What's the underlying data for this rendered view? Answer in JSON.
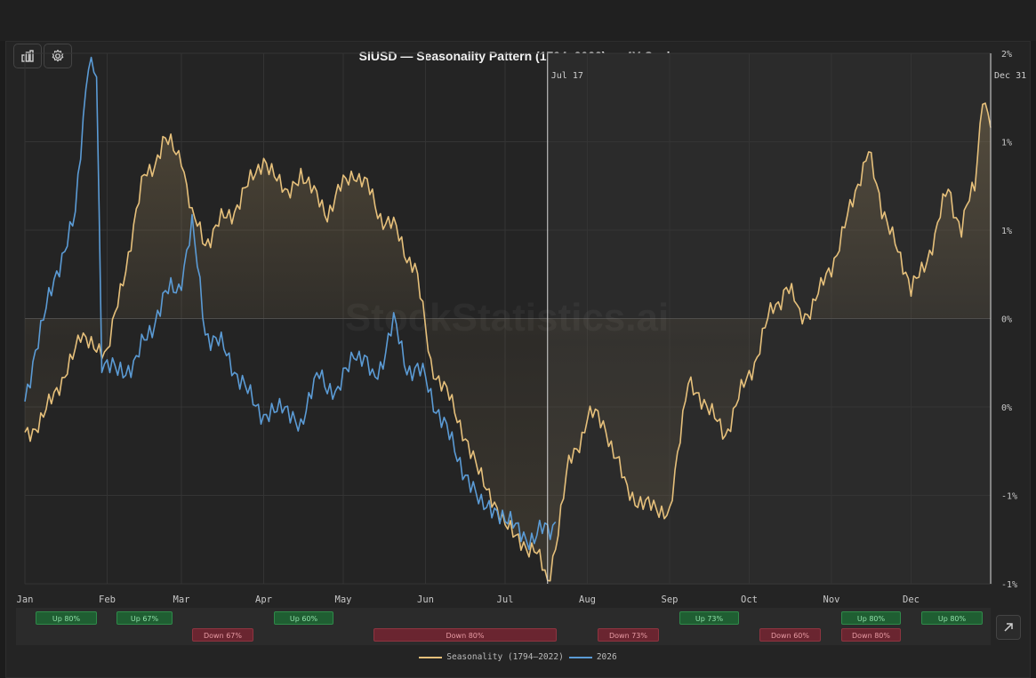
{
  "title": "SIUSD — Seasonality Pattern (1794–2022) — 4Y Cycle",
  "watermark": "StockStatistics.ai",
  "markers": [
    {
      "label": "Jul 17",
      "date": "2026-07-17"
    },
    {
      "label": "Dec 31",
      "date": "2026-12-31"
    }
  ],
  "toolbar": {
    "chart_icon": "bar-chart-icon",
    "settings_icon": "gear-icon"
  },
  "legend": [
    {
      "label": "Seasonality (1794–2022)",
      "color": "#e6c07b"
    },
    {
      "label": "2026",
      "color": "#5b9bd5"
    }
  ],
  "stats": {
    "up": [
      {
        "label": "Up 80%",
        "start": "Jan",
        "end": "Jan"
      },
      {
        "label": "Up 67%",
        "start": "Feb",
        "end": "Feb"
      },
      {
        "label": "Up 60%",
        "start": "Apr",
        "end": "Apr"
      },
      {
        "label": "Up 73%",
        "start": "Sep",
        "end": "Sep"
      },
      {
        "label": "Up 80%",
        "start": "Nov",
        "end": "Nov"
      },
      {
        "label": "Up 80%",
        "start": "Dec",
        "end": "Dec"
      }
    ],
    "down": [
      {
        "label": "Down 67%",
        "start": "Mar",
        "end": "Mar"
      },
      {
        "label": "Down 80%",
        "start": "May",
        "end": "Jul"
      },
      {
        "label": "Down 73%",
        "start": "Aug",
        "end": "Aug"
      },
      {
        "label": "Down 60%",
        "start": "Oct",
        "end": "Oct"
      },
      {
        "label": "Down 80%",
        "start": "Nov",
        "end": "Nov"
      }
    ]
  },
  "colors": {
    "seasonality": "#e6c07b",
    "year2026": "#5b9bd5",
    "up": "#2f8a4a",
    "down": "#8e3440"
  },
  "chart_data": {
    "type": "line",
    "x_axis": {
      "ticks": [
        "Jan",
        "Feb",
        "Mar",
        "Apr",
        "May",
        "Jun",
        "Jul",
        "Aug",
        "Sep",
        "Oct",
        "Nov",
        "Dec"
      ]
    },
    "y_axis": {
      "position": "right",
      "tick_labels": [
        "2%",
        "1%",
        "1%",
        "0%",
        "0%",
        "-1%",
        "-1%"
      ],
      "ylim": [
        -1.5,
        1.5
      ]
    },
    "grid": true,
    "legend_position": "bottom-center",
    "series": [
      {
        "name": "Seasonality (1794–2022)",
        "color": "#e6c07b",
        "area_fill": true,
        "points": [
          [
            "01-01",
            -0.67
          ],
          [
            "01-08",
            -0.55
          ],
          [
            "01-15",
            -0.35
          ],
          [
            "01-22",
            -0.1
          ],
          [
            "02-01",
            -0.2
          ],
          [
            "02-08",
            0.3
          ],
          [
            "02-15",
            0.8
          ],
          [
            "02-22",
            0.98
          ],
          [
            "03-01",
            0.95
          ],
          [
            "03-05",
            0.55
          ],
          [
            "03-10",
            0.45
          ],
          [
            "03-20",
            0.6
          ],
          [
            "04-01",
            0.9
          ],
          [
            "04-10",
            0.7
          ],
          [
            "04-15",
            0.82
          ],
          [
            "04-25",
            0.6
          ],
          [
            "05-05",
            0.85
          ],
          [
            "05-15",
            0.6
          ],
          [
            "05-20",
            0.5
          ],
          [
            "05-28",
            0.3
          ],
          [
            "06-03",
            -0.25
          ],
          [
            "06-10",
            -0.45
          ],
          [
            "06-18",
            -0.75
          ],
          [
            "06-25",
            -1.0
          ],
          [
            "07-05",
            -1.25
          ],
          [
            "07-12",
            -1.3
          ],
          [
            "07-17",
            -1.5
          ],
          [
            "07-25",
            -0.85
          ],
          [
            "08-01",
            -0.55
          ],
          [
            "08-08",
            -0.6
          ],
          [
            "08-15",
            -0.95
          ],
          [
            "08-22",
            -1.05
          ],
          [
            "09-01",
            -1.1
          ],
          [
            "09-08",
            -0.35
          ],
          [
            "09-15",
            -0.5
          ],
          [
            "09-22",
            -0.65
          ],
          [
            "09-30",
            -0.35
          ],
          [
            "10-10",
            0.05
          ],
          [
            "10-15",
            0.2
          ],
          [
            "10-20",
            0.0
          ],
          [
            "10-28",
            0.15
          ],
          [
            "11-01",
            0.3
          ],
          [
            "11-10",
            0.7
          ],
          [
            "11-15",
            0.97
          ],
          [
            "11-20",
            0.6
          ],
          [
            "11-25",
            0.45
          ],
          [
            "12-01",
            0.15
          ],
          [
            "12-10",
            0.45
          ],
          [
            "12-15",
            0.75
          ],
          [
            "12-20",
            0.5
          ],
          [
            "12-25",
            0.75
          ],
          [
            "12-28",
            1.3
          ],
          [
            "12-31",
            1.08
          ]
        ]
      },
      {
        "name": "2026",
        "color": "#5b9bd5",
        "points": [
          [
            "01-01",
            -0.5
          ],
          [
            "01-05",
            -0.15
          ],
          [
            "01-10",
            0.1
          ],
          [
            "01-15",
            0.35
          ],
          [
            "01-20",
            0.6
          ],
          [
            "01-25",
            1.45
          ],
          [
            "01-28",
            1.4
          ],
          [
            "01-30",
            -0.25
          ],
          [
            "02-05",
            -0.3
          ],
          [
            "02-12",
            -0.25
          ],
          [
            "02-20",
            0.05
          ],
          [
            "02-28",
            0.2
          ],
          [
            "03-05",
            0.5
          ],
          [
            "03-10",
            -0.05
          ],
          [
            "03-15",
            -0.15
          ],
          [
            "03-20",
            -0.25
          ],
          [
            "03-27",
            -0.45
          ],
          [
            "04-01",
            -0.55
          ],
          [
            "04-08",
            -0.5
          ],
          [
            "04-15",
            -0.6
          ],
          [
            "04-22",
            -0.3
          ],
          [
            "04-29",
            -0.45
          ],
          [
            "05-05",
            -0.15
          ],
          [
            "05-12",
            -0.35
          ],
          [
            "05-20",
            -0.05
          ],
          [
            "05-25",
            -0.25
          ],
          [
            "06-01",
            -0.35
          ],
          [
            "06-08",
            -0.6
          ],
          [
            "06-15",
            -0.85
          ],
          [
            "06-22",
            -1.05
          ],
          [
            "06-29",
            -1.1
          ],
          [
            "07-06",
            -1.2
          ],
          [
            "07-12",
            -1.25
          ],
          [
            "07-20",
            -1.15
          ]
        ]
      }
    ]
  }
}
